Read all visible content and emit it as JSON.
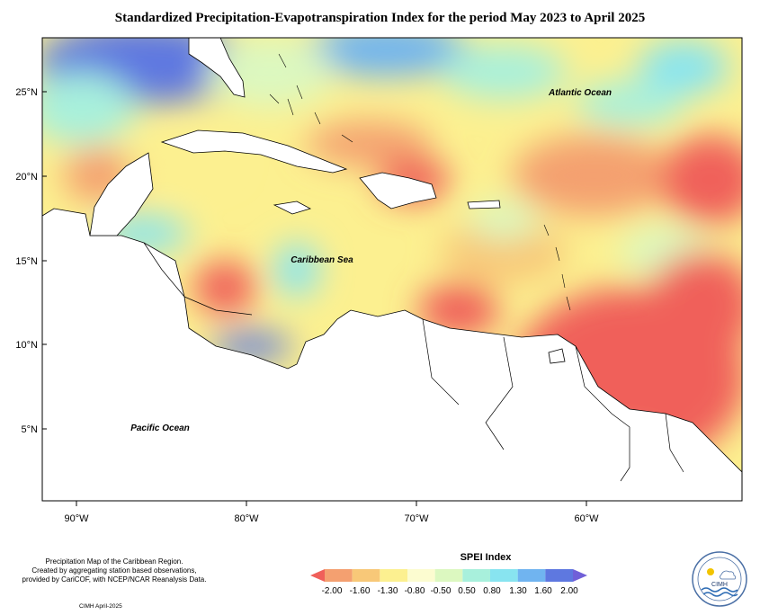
{
  "title": "Standardized Precipitation-Evapotranspiration Index for the period May 2023 to April 2025",
  "axes": {
    "lat_labels": [
      "25°N",
      "20°N",
      "15°N",
      "10°N",
      "5°N"
    ],
    "lon_labels": [
      "90°W",
      "80°W",
      "70°W",
      "60°W"
    ]
  },
  "regions": {
    "atlantic": "Atlantic Ocean",
    "caribbean": "Caribbean Sea",
    "pacific": "Pacific Ocean"
  },
  "credit": {
    "line1": "Precipitation Map of the Caribbean Region.",
    "line2": "Created by aggregating station based observations,",
    "line3": "provided by CariCOF, with NCEP/NCAR Reanalysis Data.",
    "date": "CIMH April-2025"
  },
  "legend": {
    "title": "SPEI Index",
    "ticks": [
      "-2.00",
      "-1.60",
      "-1.30",
      "-0.80",
      "-0.50",
      "0.50",
      "0.80",
      "1.30",
      "1.60",
      "2.00"
    ],
    "colors": [
      "#f0605a",
      "#f4a070",
      "#f8c878",
      "#fcf090",
      "#fcfcd0",
      "#dcf8c0",
      "#a8f0dc",
      "#88e4f0",
      "#70b4f0",
      "#5e78e0",
      "#7060d8"
    ]
  },
  "logo": {
    "name": "CIMH"
  },
  "map_extent": {
    "lon": [
      -92,
      -51
    ],
    "lat": [
      1,
      28
    ]
  }
}
